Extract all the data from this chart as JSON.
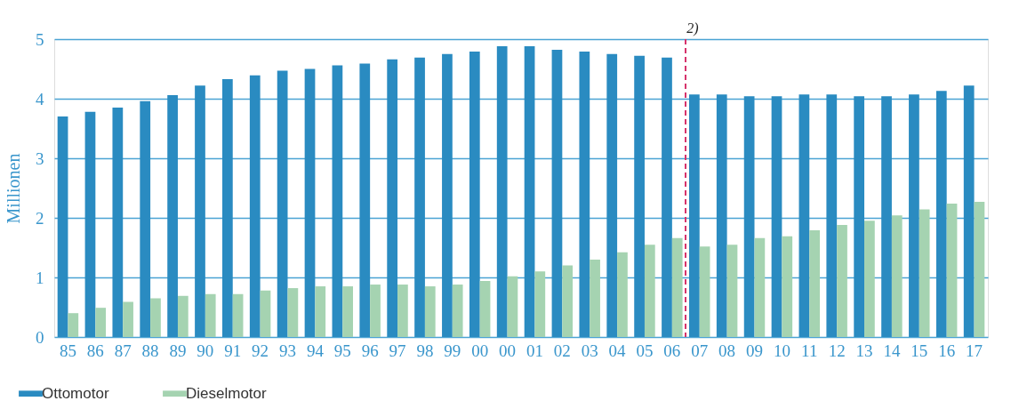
{
  "chart_data": {
    "type": "bar",
    "ylabel": "Millionen",
    "categories": [
      "85",
      "86",
      "87",
      "88",
      "89",
      "90",
      "91",
      "92",
      "93",
      "94",
      "95",
      "96",
      "97",
      "98",
      "99",
      "00",
      "00",
      "01",
      "02",
      "03",
      "04",
      "05",
      "06",
      "07",
      "08",
      "09",
      "10",
      "11",
      "12",
      "13",
      "14",
      "15",
      "16",
      "17"
    ],
    "series": [
      {
        "name": "Ottomotor",
        "color": "#2a8bc1",
        "values": [
          3.7,
          3.78,
          3.85,
          3.96,
          4.06,
          4.22,
          4.33,
          4.39,
          4.47,
          4.5,
          4.56,
          4.59,
          4.66,
          4.69,
          4.75,
          4.79,
          4.88,
          4.88,
          4.82,
          4.79,
          4.75,
          4.72,
          4.69,
          4.07,
          4.07,
          4.04,
          4.04,
          4.07,
          4.07,
          4.04,
          4.04,
          4.07,
          4.13,
          4.22
        ]
      },
      {
        "name": "Dieselmotor",
        "color": "#a5d3b1",
        "values": [
          0.4,
          0.49,
          0.59,
          0.65,
          0.69,
          0.72,
          0.72,
          0.78,
          0.82,
          0.85,
          0.85,
          0.88,
          0.88,
          0.85,
          0.88,
          0.94,
          1.02,
          1.1,
          1.2,
          1.3,
          1.42,
          1.55,
          1.66,
          1.52,
          1.55,
          1.66,
          1.69,
          1.79,
          1.88,
          1.95,
          2.04,
          2.14,
          2.24,
          2.27
        ]
      }
    ],
    "ylim": [
      0,
      5
    ],
    "yticks": [
      0,
      1,
      2,
      3,
      4,
      5
    ],
    "grid": "y",
    "legend": "bottom left",
    "ref_lines": [
      {
        "axis": "x",
        "value": "07",
        "label": "2)",
        "color": "#d6336c",
        "line_style": "dashed"
      }
    ]
  }
}
